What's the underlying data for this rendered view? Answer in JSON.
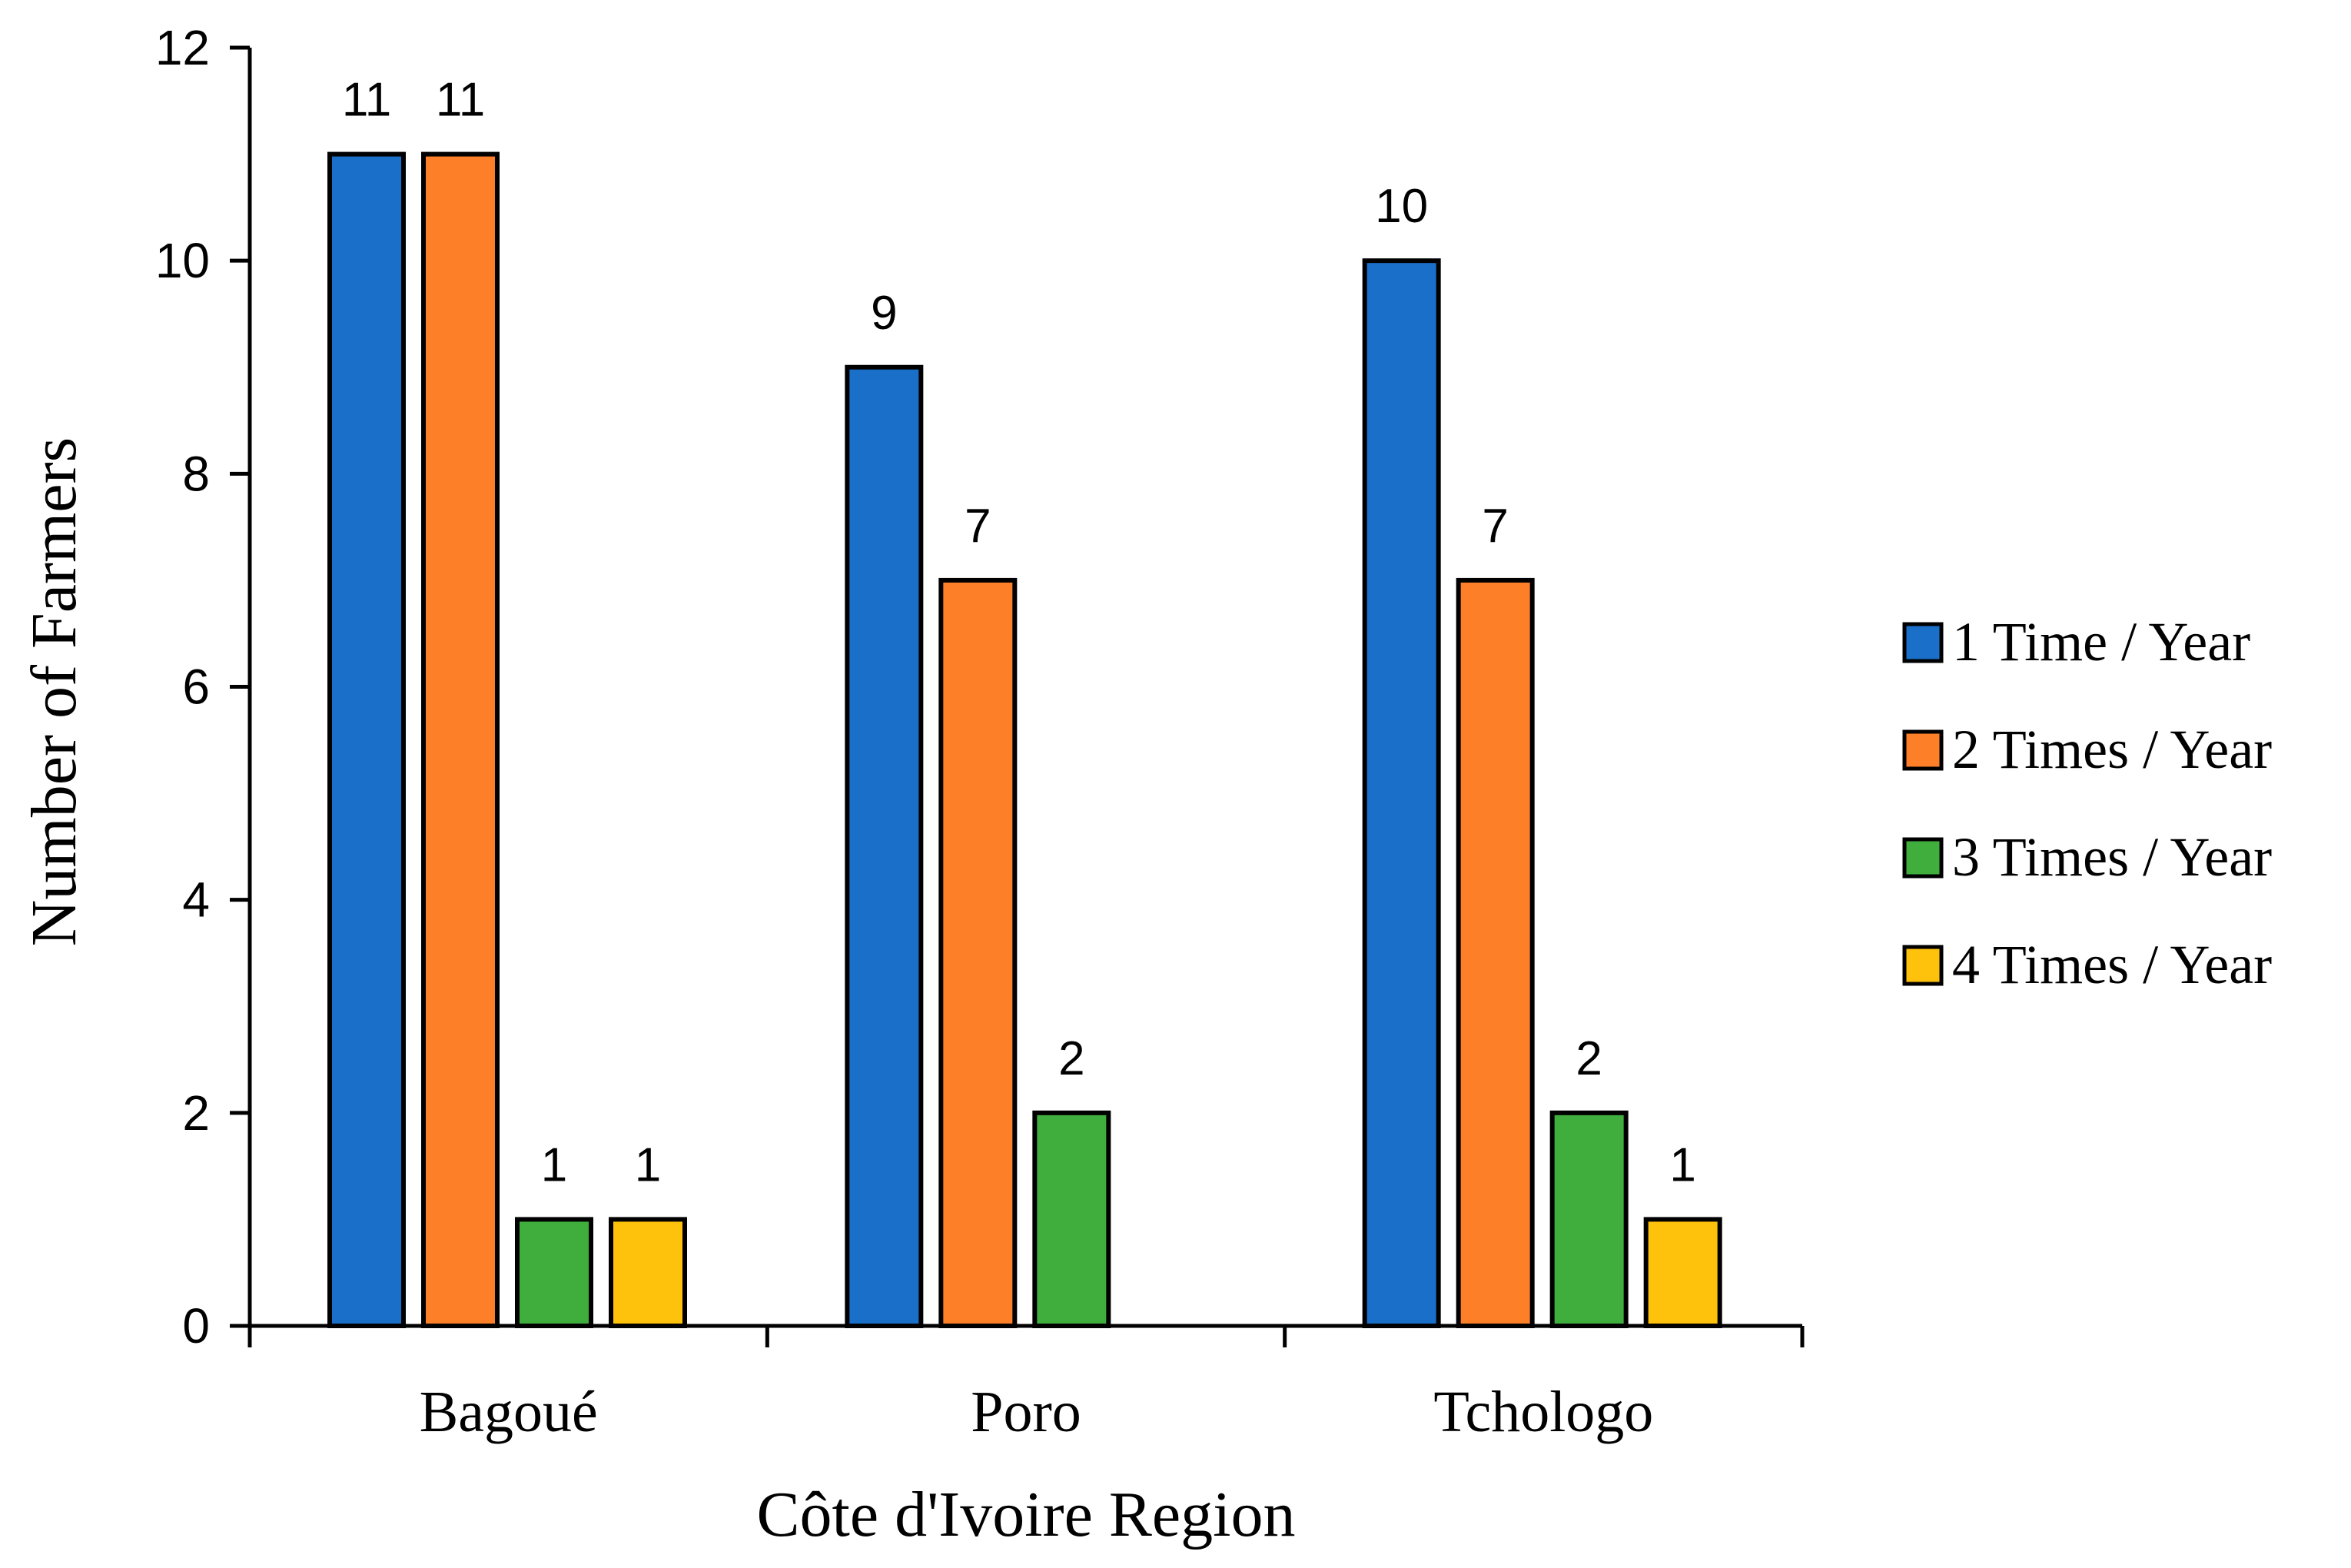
{
  "chart_data": {
    "type": "bar",
    "title": "",
    "xlabel": "Côte d'Ivoire Region",
    "ylabel": "Number of Farmers",
    "ylim": [
      0,
      12
    ],
    "yticks": [
      0,
      2,
      4,
      6,
      8,
      10,
      12
    ],
    "grid": false,
    "legend_position": "right",
    "categories": [
      "Bagoué",
      "Poro",
      "Tchologo"
    ],
    "series": [
      {
        "name": "1 Time / Year",
        "color": "#1a6fc9",
        "values": [
          11,
          9,
          10
        ],
        "labels": [
          "11",
          "9",
          "10"
        ]
      },
      {
        "name": "2 Times / Year",
        "color": "#fd7f28",
        "values": [
          11,
          7,
          7
        ],
        "labels": [
          "11",
          "7",
          "7"
        ]
      },
      {
        "name": "3 Times / Year",
        "color": "#3fae3c",
        "values": [
          1,
          2,
          2
        ],
        "labels": [
          "1",
          "2",
          "2"
        ]
      },
      {
        "name": "4 Times / Year",
        "color": "#fec20c",
        "values": [
          1,
          0,
          1
        ],
        "labels": [
          "1",
          "",
          "1"
        ]
      }
    ]
  }
}
